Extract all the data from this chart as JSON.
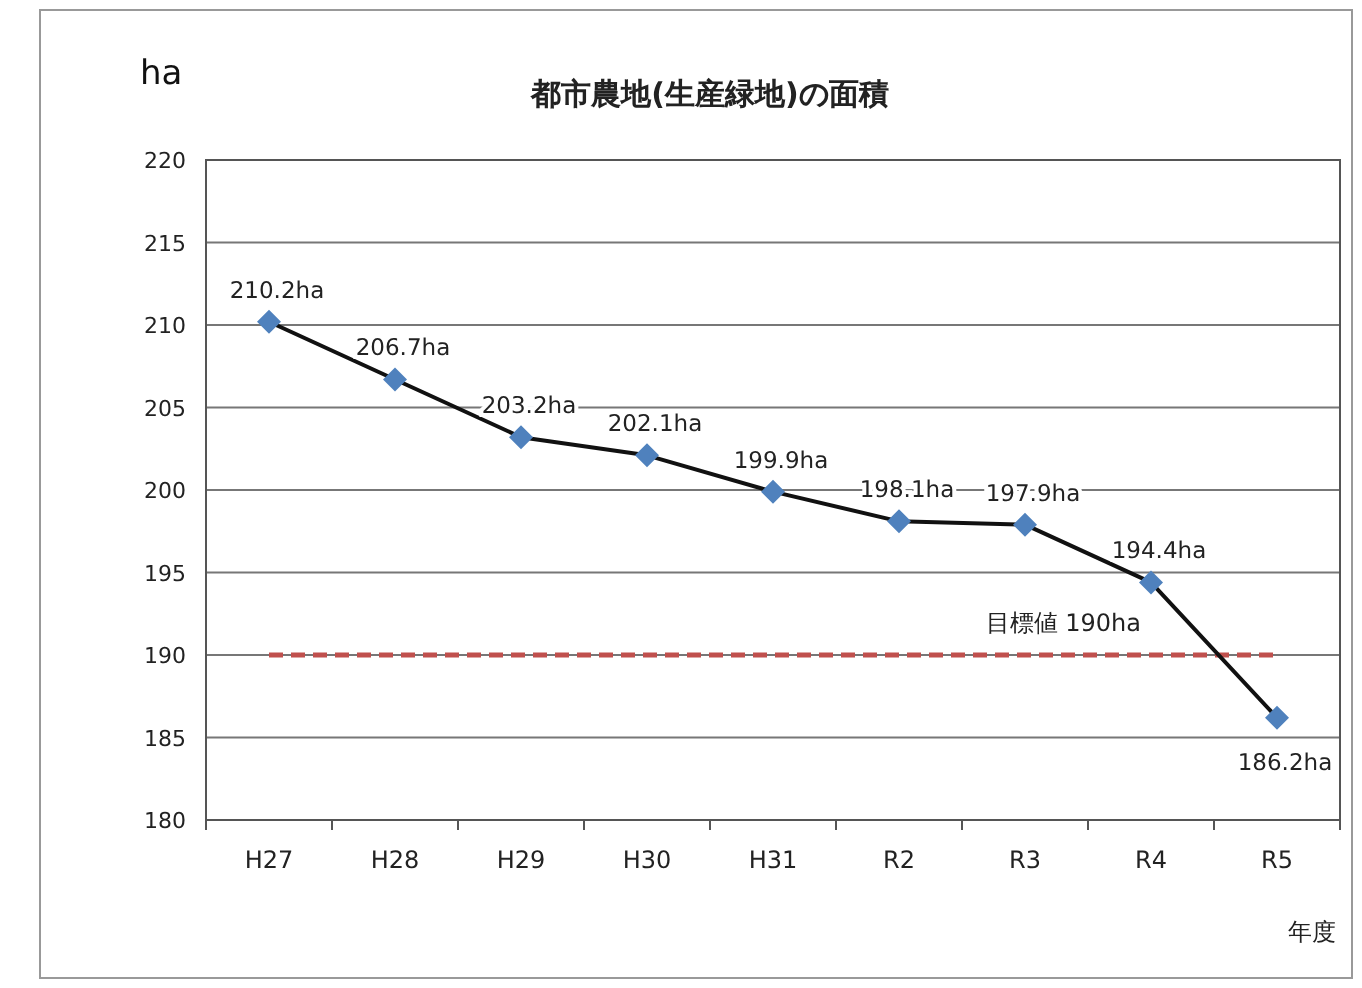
{
  "chart_data": {
    "type": "line",
    "title": "都市農地(生産緑地)の面積",
    "xlabel": "年度",
    "ylabel": "ha",
    "categories": [
      "H27",
      "H28",
      "H29",
      "H30",
      "H31",
      "R2",
      "R3",
      "R4",
      "R5"
    ],
    "series": [
      {
        "color": "#4f81bd",
        "values": [
          210.2,
          206.7,
          203.2,
          202.1,
          199.9,
          198.1,
          197.9,
          194.4,
          186.2
        ],
        "value_labels": [
          "210.2ha",
          "206.7ha",
          "203.2ha",
          "202.1ha",
          "199.9ha",
          "198.1ha",
          "197.9ha",
          "194.4ha",
          "186.2ha"
        ]
      }
    ],
    "ylim": [
      180,
      220
    ],
    "yticks": [
      180,
      185,
      190,
      195,
      200,
      205,
      210,
      215,
      220
    ],
    "grid": "y",
    "marker": "diamond",
    "line_style": "solid",
    "ref_lines": [
      {
        "axis": "y",
        "value": 190,
        "label": "目標値 190ha",
        "color": "#c0504d",
        "line_style": "dashed"
      }
    ]
  }
}
